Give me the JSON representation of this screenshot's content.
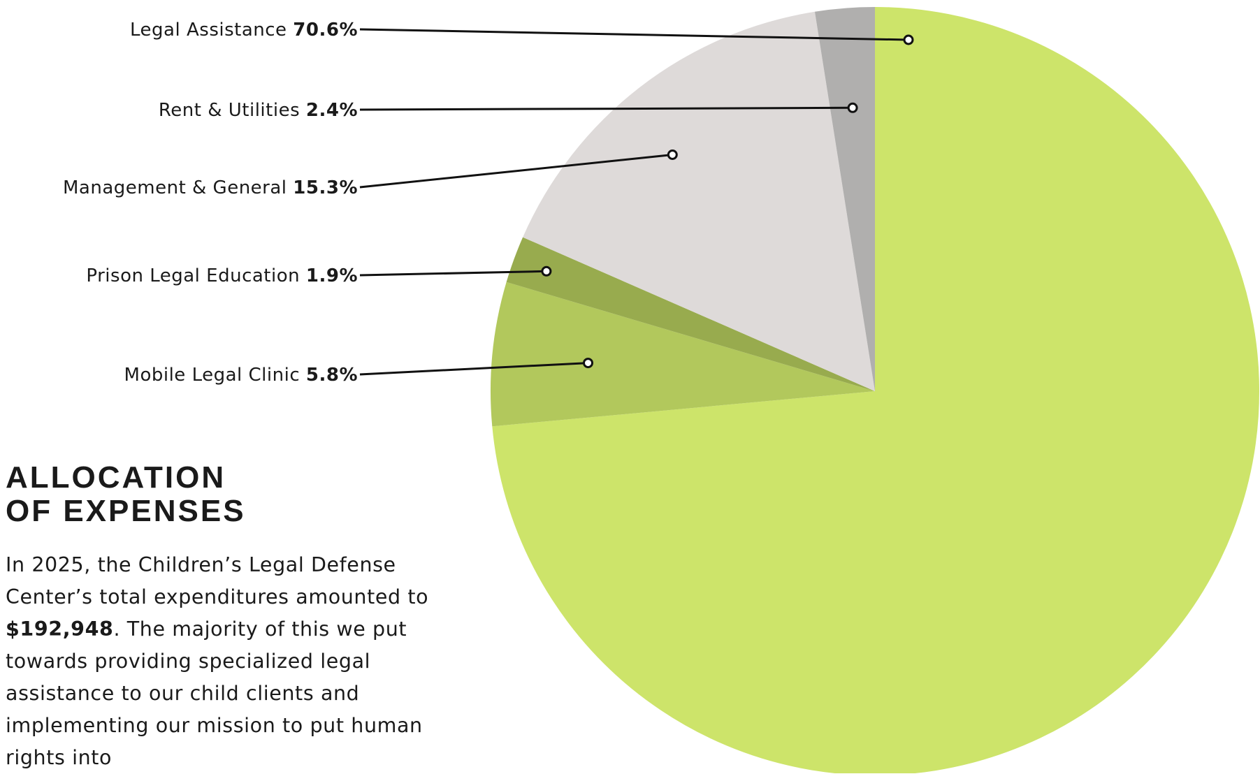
{
  "chart_data": {
    "type": "pie",
    "title": "ALLOCATION OF EXPENSES",
    "slices": [
      {
        "label": "Legal Assistance",
        "value": 70.6,
        "value_label": "70.6%",
        "color": "#cde46a"
      },
      {
        "label": "Mobile Legal Clinic",
        "value": 5.8,
        "value_label": "5.8%",
        "color": "#b2c85c"
      },
      {
        "label": "Prison Legal Education",
        "value": 1.9,
        "value_label": "1.9%",
        "color": "#98ab4e"
      },
      {
        "label": "Management & General",
        "value": 15.3,
        "value_label": "15.3%",
        "color": "#dedad9"
      },
      {
        "label": "Rent & Utilities",
        "value": 2.4,
        "value_label": "2.4%",
        "color": "#b0afae"
      }
    ]
  },
  "heading": {
    "line1": "ALLOCATION",
    "line2": "OF EXPENSES"
  },
  "body": {
    "text_before": "In 2025, the Children’s Legal Defense Center’s total expenditures amounted to ",
    "amount": "$192,948",
    "text_after": ". The majority of this we put towards providing specialized legal assistance to our child clients and implementing our mission to put human rights into"
  }
}
